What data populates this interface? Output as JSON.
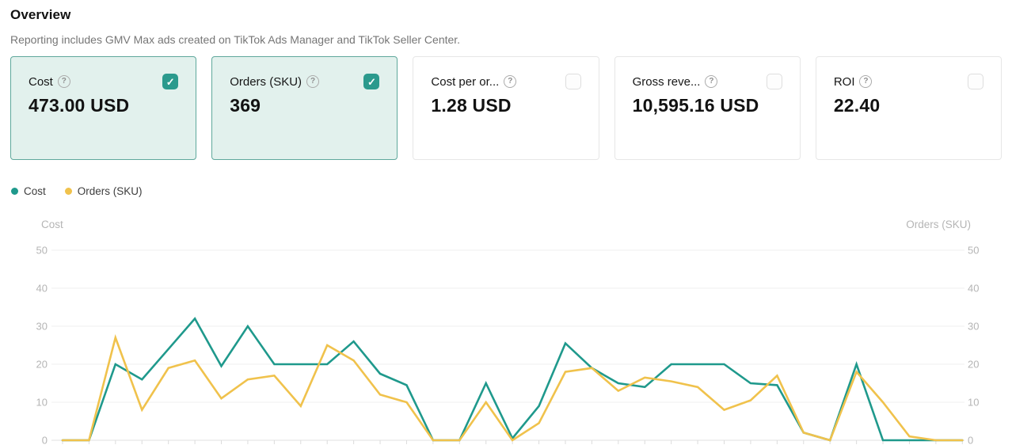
{
  "header": {
    "title": "Overview",
    "subtitle": "Reporting includes GMV Max ads created on TikTok Ads Manager and TikTok Seller Center."
  },
  "icons": {
    "help": "?",
    "check": "✓"
  },
  "metric_cards": [
    {
      "label": "Cost",
      "value": "473.00 USD",
      "checked": true
    },
    {
      "label": "Orders (SKU)",
      "value": "369",
      "checked": true
    },
    {
      "label": "Cost per or...",
      "value": "1.28 USD",
      "checked": false
    },
    {
      "label": "Gross reve...",
      "value": "10,595.16 USD",
      "checked": false
    },
    {
      "label": "ROI",
      "value": "22.40",
      "checked": false
    }
  ],
  "legend": [
    {
      "label": "Cost",
      "color": "#1f998c"
    },
    {
      "label": "Orders (SKU)",
      "color": "#f0c24c"
    }
  ],
  "chart_data": {
    "type": "line",
    "title": "",
    "left_axis_label": "Cost",
    "right_axis_label": "Orders (SKU)",
    "y_ticks": [
      0,
      10,
      20,
      30,
      40,
      50
    ],
    "ylim": [
      0,
      50
    ],
    "grid": true,
    "legend_position": "top-left",
    "x_labels_visible": false,
    "series": [
      {
        "name": "Cost",
        "color": "#1f998c",
        "values": [
          0,
          0,
          20,
          16,
          24,
          32,
          19.5,
          30,
          20,
          20,
          20,
          26,
          17.5,
          14.5,
          0,
          0,
          15,
          0.5,
          9,
          25.5,
          19,
          15,
          14,
          20,
          20,
          20,
          15,
          14.5,
          2,
          0,
          20,
          0,
          0,
          0,
          0
        ]
      },
      {
        "name": "Orders (SKU)",
        "color": "#f0c24c",
        "values": [
          0,
          0,
          27,
          8,
          19,
          21,
          11,
          16,
          17,
          9,
          25,
          21,
          12,
          10,
          0,
          0,
          10,
          0,
          4.5,
          18,
          19,
          13,
          16.5,
          15.5,
          14,
          8,
          10.5,
          17,
          2,
          0,
          18,
          10,
          1,
          0,
          0
        ]
      }
    ]
  },
  "colors": {
    "accent_teal": "#2b9a8d",
    "selected_card_bg": "#e2f1ed",
    "selected_card_border": "#5fa89c",
    "grid_line": "#efefef",
    "axis_line": "#e2e2e2",
    "tick_label": "#b5b5b5"
  }
}
